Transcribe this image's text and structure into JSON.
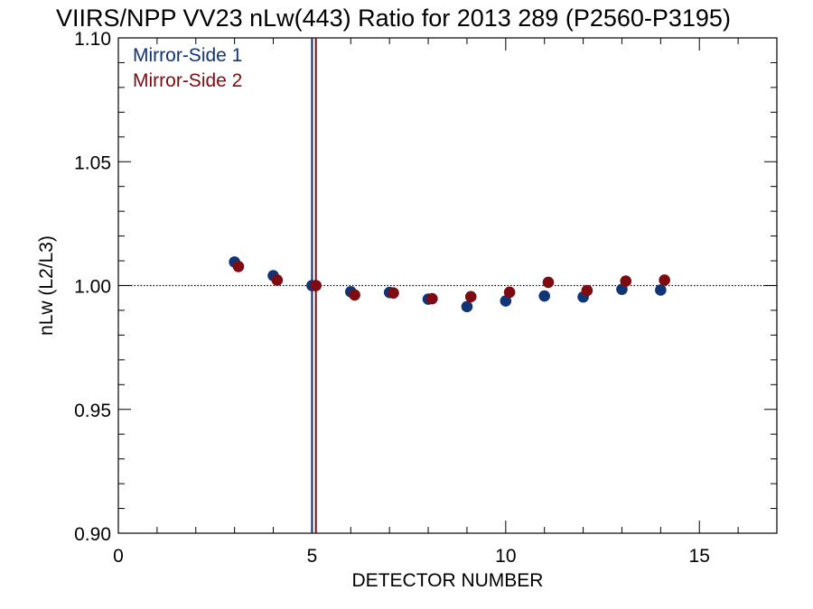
{
  "chart_data": {
    "type": "scatter",
    "title": "VIIRS/NPP VV23 nLw(443) Ratio for 2013 289 (P2560-P3195)",
    "xlabel": "DETECTOR NUMBER",
    "ylabel": "nLw (L2/L3)",
    "xlim": [
      0,
      17
    ],
    "ylim": [
      0.9,
      1.1
    ],
    "x_ticks": [
      0,
      5,
      10,
      15
    ],
    "x_tick_labels": [
      "0",
      "5",
      "10",
      "15"
    ],
    "y_ticks": [
      0.9,
      0.95,
      1.0,
      1.05,
      1.1
    ],
    "y_tick_labels": [
      "0.90",
      "0.95",
      "1.00",
      "1.05",
      "1.10"
    ],
    "reference_line_y": 1.0,
    "vertical_markers": [
      {
        "x": 5.0,
        "color": "#0a2a6a",
        "series": "Mirror-Side 1"
      },
      {
        "x": 5.1,
        "color": "#7a0a10",
        "series": "Mirror-Side 2"
      }
    ],
    "legend_placement": "top-left",
    "series": [
      {
        "name": "Mirror-Side 1",
        "color": "#0f3575",
        "x": [
          3,
          4,
          5,
          6,
          7,
          8,
          9,
          10,
          11,
          12,
          13,
          14
        ],
        "y": [
          1.0095,
          1.004,
          1.0,
          0.9975,
          0.9972,
          0.9945,
          0.9915,
          0.9938,
          0.9958,
          0.9954,
          0.9985,
          0.9982
        ]
      },
      {
        "name": "Mirror-Side 2",
        "color": "#7e0b12",
        "x": [
          3.1,
          4.1,
          5.1,
          6.1,
          7.1,
          8.1,
          9.1,
          10.1,
          11.1,
          12.1,
          13.1,
          14.1
        ],
        "y": [
          1.0077,
          1.0022,
          1.0,
          0.9962,
          0.997,
          0.9947,
          0.9955,
          0.9973,
          1.0013,
          0.998,
          1.0018,
          1.0022
        ]
      }
    ]
  }
}
